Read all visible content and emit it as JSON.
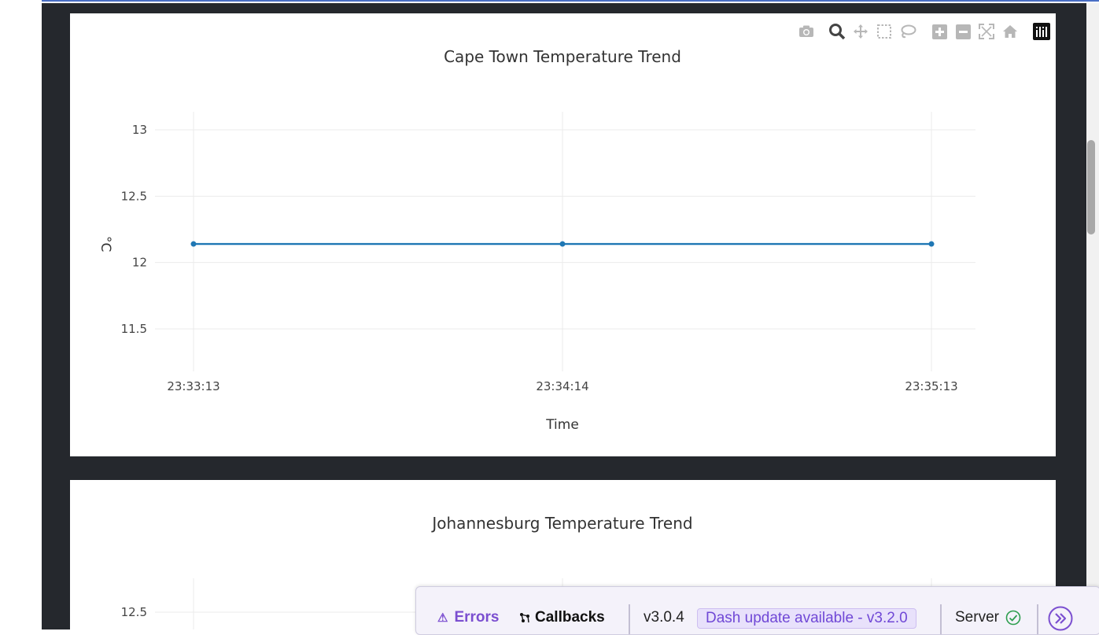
{
  "charts": [
    {
      "title": "Cape Town Temperature Trend",
      "xlabel": "Time",
      "ylabel": "°C",
      "y_ticks": [
        "13",
        "12.5",
        "12",
        "11.5"
      ],
      "x_ticks": [
        "23:33:13",
        "23:34:14",
        "23:35:13"
      ]
    },
    {
      "title": "Johannesburg Temperature Trend",
      "y_ticks": [
        "12.5"
      ]
    }
  ],
  "chart_data": [
    {
      "type": "line",
      "title": "Cape Town Temperature Trend",
      "xlabel": "Time",
      "ylabel": "°C",
      "x": [
        "23:33:13",
        "23:34:14",
        "23:35:13"
      ],
      "series": [
        {
          "values": [
            12.14,
            12.14,
            12.14
          ]
        }
      ],
      "ylim": [
        11.2,
        13.15
      ],
      "y_ticks": [
        11.5,
        12,
        12.5,
        13
      ],
      "line_color": "#1f77b4",
      "grid": true
    },
    {
      "type": "line",
      "title": "Johannesburg Temperature Trend",
      "series": [],
      "y_ticks": [
        12.5
      ],
      "grid": true
    }
  ],
  "modebar": {
    "buttons": [
      {
        "name": "camera-icon",
        "title": "Download plot as a png"
      },
      {
        "name": "zoom-icon",
        "title": "Zoom"
      },
      {
        "name": "pan-icon",
        "title": "Pan"
      },
      {
        "name": "box-select-icon",
        "title": "Box Select"
      },
      {
        "name": "lasso-select-icon",
        "title": "Lasso Select"
      },
      {
        "name": "zoom-in-icon",
        "title": "Zoom in"
      },
      {
        "name": "zoom-out-icon",
        "title": "Zoom out"
      },
      {
        "name": "autoscale-icon",
        "title": "Autoscale"
      },
      {
        "name": "reset-axes-icon",
        "title": "Reset axes"
      },
      {
        "name": "plotly-logo-icon",
        "title": "Produced with Plotly"
      }
    ]
  },
  "devtools": {
    "errors_label": "Errors",
    "callbacks_label": "Callbacks",
    "version": "v3.0.4",
    "update_label": "Dash update available - v3.2.0",
    "server_label": "Server",
    "accent_color": "#7b4fd0",
    "server_status_color": "#2e9e4f"
  }
}
